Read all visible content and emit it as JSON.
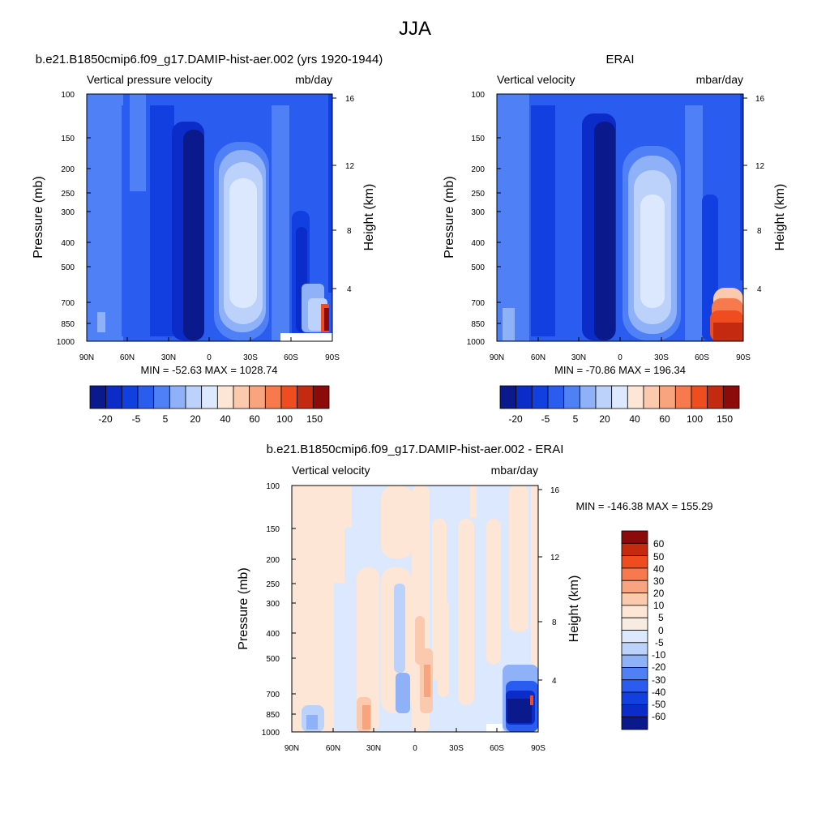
{
  "figure": {
    "title": "JJA"
  },
  "chart_data": [
    {
      "type": "heatmap",
      "panel": "model",
      "title": "b.e21.B1850cmip6.f09_g17.DAMIP-hist-aer.002 (yrs 1920-1944)",
      "left_label": "Vertical pressure velocity",
      "units": "mb/day",
      "ylabel": "Pressure (mb)",
      "y2label": "Height (km)",
      "x_ticks": [
        "90N",
        "60N",
        "30N",
        "0",
        "30S",
        "60S",
        "90S"
      ],
      "y_ticks": [
        "100",
        "150",
        "200",
        "250",
        "300",
        "400",
        "500",
        "700",
        "850",
        "1000"
      ],
      "y2_ticks": [
        "16",
        "12",
        "8",
        "4"
      ],
      "stats": "MIN = -52.63  MAX = 1028.74",
      "colorbar_labels": [
        "-20",
        "-5",
        "5",
        "20",
        "40",
        "60",
        "100",
        "150"
      ]
    },
    {
      "type": "heatmap",
      "panel": "obs",
      "title": "ERAI",
      "left_label": "Vertical velocity",
      "units": "mbar/day",
      "ylabel": "Pressure (mb)",
      "y2label": "Height (km)",
      "x_ticks": [
        "90N",
        "60N",
        "30N",
        "0",
        "30S",
        "60S",
        "90S"
      ],
      "y_ticks": [
        "100",
        "150",
        "200",
        "250",
        "300",
        "400",
        "500",
        "700",
        "850",
        "1000"
      ],
      "y2_ticks": [
        "16",
        "12",
        "8",
        "4"
      ],
      "stats": "MIN = -70.86  MAX = 196.34",
      "colorbar_labels": [
        "-20",
        "-5",
        "5",
        "20",
        "40",
        "60",
        "100",
        "150"
      ]
    },
    {
      "type": "heatmap",
      "panel": "diff",
      "title": "b.e21.B1850cmip6.f09_g17.DAMIP-hist-aer.002 - ERAI",
      "left_label": "Vertical velocity",
      "units": "mbar/day",
      "ylabel": "Pressure (mb)",
      "y2label": "Height (km)",
      "x_ticks": [
        "90N",
        "60N",
        "30N",
        "0",
        "30S",
        "60S",
        "90S"
      ],
      "y_ticks": [
        "100",
        "150",
        "200",
        "250",
        "300",
        "400",
        "500",
        "700",
        "850",
        "1000"
      ],
      "y2_ticks": [
        "16",
        "12",
        "8",
        "4"
      ],
      "stats": "MIN = -146.38  MAX = 155.29",
      "colorbar_labels": [
        "60",
        "50",
        "40",
        "30",
        "20",
        "10",
        "5",
        "0",
        "-5",
        "-10",
        "-20",
        "-30",
        "-40",
        "-50",
        "-60"
      ]
    }
  ],
  "colors": {
    "main_scale": [
      "#0a1a8c",
      "#0b2cc9",
      "#1240e0",
      "#2a5cf0",
      "#4f80f5",
      "#8fb1f8",
      "#bcd2fb",
      "#dbe8fd",
      "#fde6d6",
      "#fbc9ad",
      "#f8a47e",
      "#f67a4e",
      "#ef4c1f",
      "#c42a10",
      "#8c0a0a"
    ],
    "diff_scale": [
      "#8c0a0a",
      "#c42a10",
      "#ef4c1f",
      "#f67a4e",
      "#f8a47e",
      "#fbc9ad",
      "#fde6d6",
      "#f7ecdf",
      "#dbe8fd",
      "#bcd2fb",
      "#8fb1f8",
      "#4f80f5",
      "#2a5cf0",
      "#1240e0",
      "#0b2cc9",
      "#0a1a8c"
    ]
  }
}
